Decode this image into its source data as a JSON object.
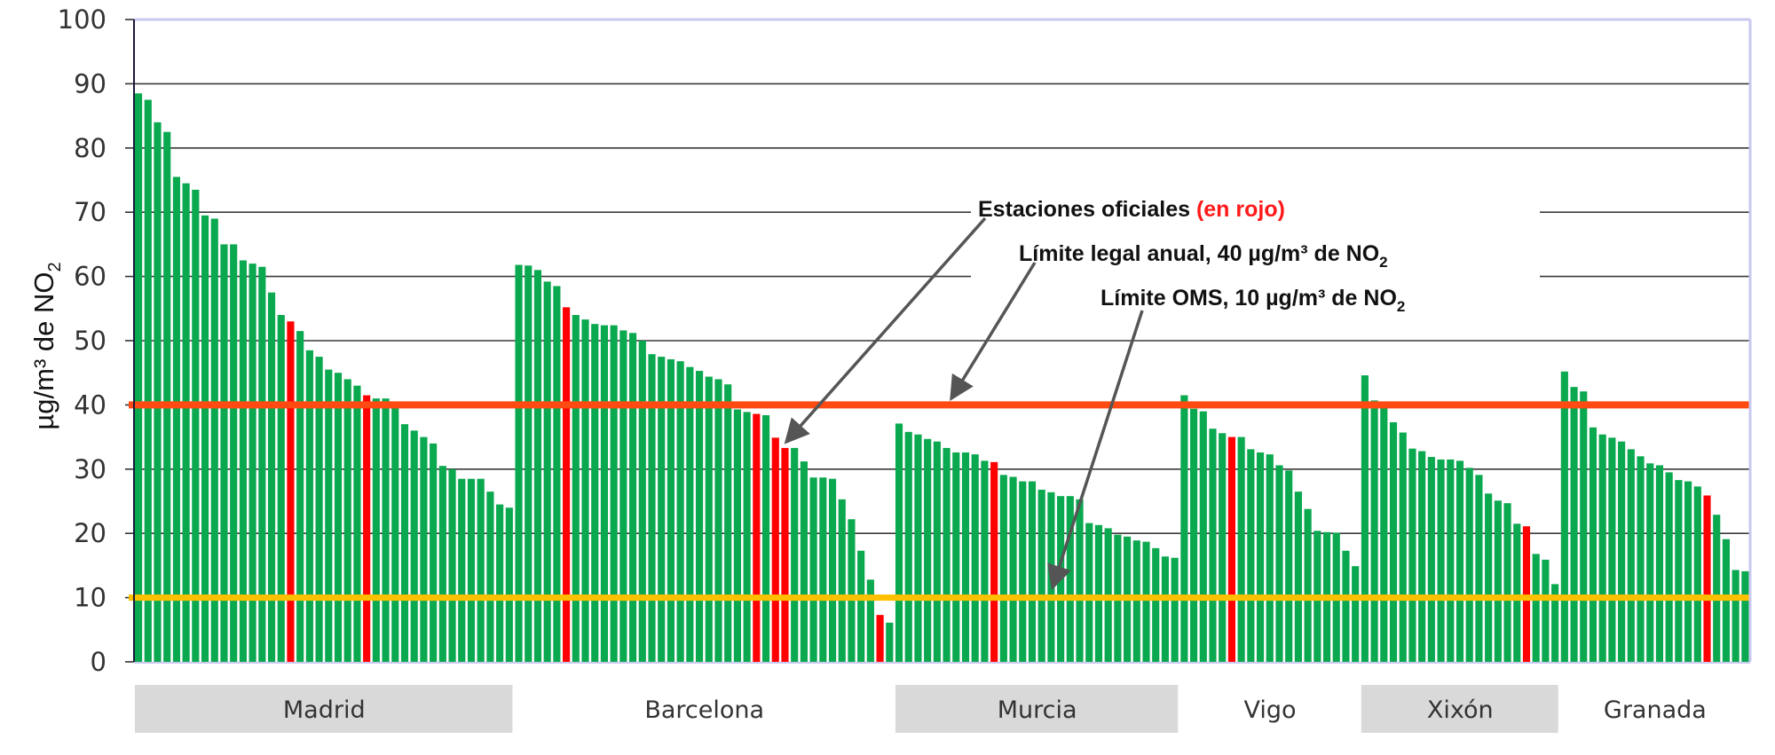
{
  "chart_data": {
    "type": "bar",
    "ylabel": "µg/m³ de NO",
    "ylabel_sub": "2",
    "ylim": [
      0,
      100
    ],
    "yticks": [
      "0",
      "10",
      "20",
      "30",
      "40",
      "50",
      "60",
      "70",
      "80",
      "90",
      "100"
    ],
    "grid": true,
    "colors": {
      "station": "#0aa84f",
      "official_station": "#ff0000",
      "legal_limit": "#ff4a12",
      "who_limit": "#ffc000",
      "grid": "#3a3a3a",
      "frame": "#c8c8f0",
      "band": "#d9d9d9"
    },
    "reference_lines": [
      {
        "name": "legal_limit",
        "value": 40
      },
      {
        "name": "who_limit",
        "value": 10
      }
    ],
    "groups": [
      {
        "city": "Madrid",
        "shaded": true,
        "values": [
          88.5,
          87.5,
          84,
          82.5,
          75.5,
          74.5,
          73.5,
          69.5,
          69,
          65,
          65,
          62.5,
          62,
          61.5,
          57.5,
          54,
          53,
          51.5,
          48.5,
          47.5,
          45.5,
          45,
          44,
          43,
          41.5,
          41,
          41,
          40.5,
          37,
          36,
          35,
          34,
          30.5,
          30,
          28.5,
          28.5,
          28.5,
          26.5,
          24.5,
          24
        ],
        "official": [
          16,
          24
        ]
      },
      {
        "city": "Barcelona",
        "shaded": false,
        "values": [
          61.8,
          61.7,
          61,
          59.2,
          58.5,
          55.2,
          54,
          53.3,
          52.6,
          52.4,
          52.4,
          51.6,
          51.2,
          50,
          47.9,
          47.5,
          47.1,
          46.8,
          45.9,
          45.3,
          44.4,
          44,
          43.2,
          39.3,
          38.9,
          38.6,
          38.4,
          34.9,
          33.3,
          33.3,
          31.2,
          28.7,
          28.7,
          28.5,
          25.3,
          22.2,
          17.3,
          12.8,
          7.3,
          6.1
        ],
        "official": [
          5,
          25,
          27,
          28,
          38
        ]
      },
      {
        "city": "Murcia",
        "shaded": true,
        "values": [
          37.1,
          35.8,
          35.4,
          34.7,
          34.3,
          33.3,
          32.6,
          32.6,
          32.3,
          31.3,
          31.1,
          29.1,
          28.8,
          28.1,
          28.1,
          26.8,
          26.4,
          25.8,
          25.8,
          25.3,
          21.6,
          21.3,
          20.8,
          19.8,
          19.5,
          18.9,
          18.7,
          17.7,
          16.4,
          16.2
        ],
        "official": [
          10
        ]
      },
      {
        "city": "Vigo",
        "shaded": false,
        "values": [
          41.5,
          39.4,
          39,
          36.3,
          35.6,
          35,
          35,
          33.1,
          32.6,
          32.3,
          30.6,
          29.8,
          26.5,
          23.8,
          20.4,
          20.2,
          20.1,
          17.3,
          14.9
        ],
        "official": [
          5
        ]
      },
      {
        "city": "Xixón",
        "shaded": true,
        "values": [
          44.6,
          40.7,
          40.3,
          37.3,
          35.7,
          33.2,
          32.8,
          31.9,
          31.5,
          31.5,
          31.3,
          30.2,
          29.1,
          26.2,
          25.1,
          24.7,
          21.5,
          21.1,
          16.8,
          15.9,
          12.1
        ],
        "official": [
          17
        ]
      },
      {
        "city": "Granada",
        "shaded": false,
        "values": [
          45.2,
          42.8,
          42.1,
          36.5,
          35.4,
          34.9,
          34.3,
          33.1,
          32,
          30.9,
          30.6,
          29.5,
          28.3,
          28.1,
          27.3,
          25.9,
          22.9,
          19.1,
          14.3,
          14.1
        ],
        "official": [
          15
        ]
      }
    ],
    "annotations": {
      "official": {
        "text": "Estaciones oficiales ",
        "highlight": "(en rojo)"
      },
      "legal": {
        "text": "Límite legal anual, 40 µg/m³ de NO",
        "sub": "2"
      },
      "who": {
        "text": "Límite OMS, 10 µg/m³ de NO",
        "sub": "2"
      }
    }
  }
}
